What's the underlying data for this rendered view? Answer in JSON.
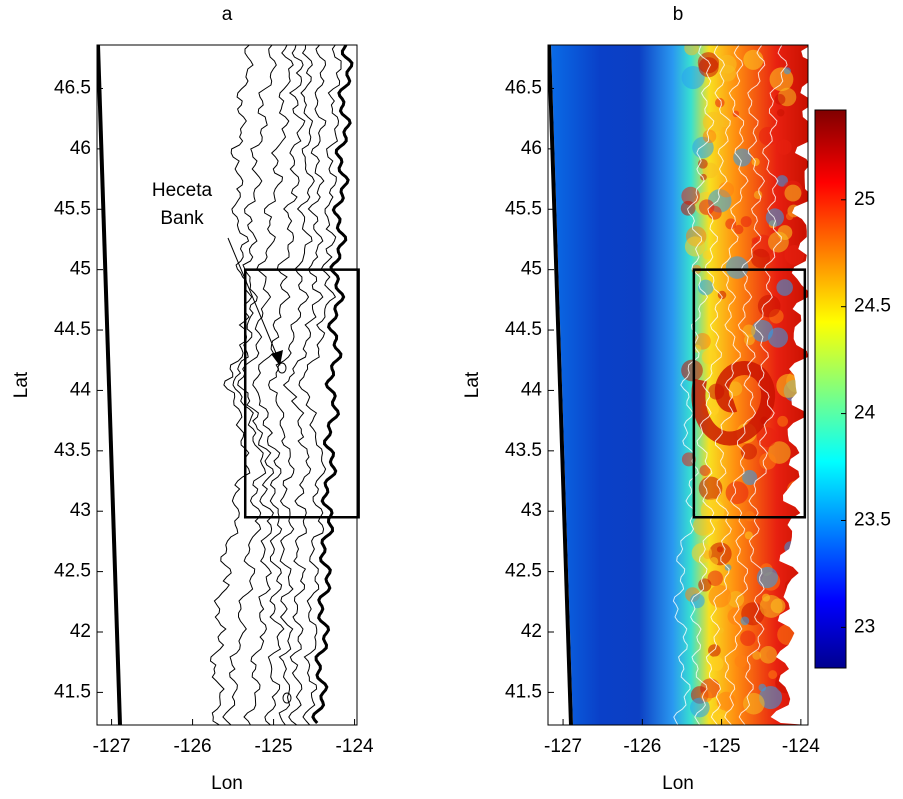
{
  "chart_data": [
    {
      "type": "map",
      "title": "a",
      "xlabel": "Lon",
      "ylabel": "Lat",
      "xlim": [
        -127.18,
        -123.97
      ],
      "ylim": [
        41.23,
        46.86
      ],
      "xticks": [
        -127,
        -126,
        -125,
        -124
      ],
      "yticks": [
        41.5,
        42,
        42.5,
        43,
        43.5,
        44,
        44.5,
        45,
        45.5,
        46,
        46.5
      ],
      "box": {
        "lon": [
          -125.35,
          -123.95
        ],
        "lat": [
          42.95,
          45.0
        ]
      },
      "annotation": [
        "Heceta",
        "Bank"
      ]
    },
    {
      "type": "field",
      "title": "b",
      "xlabel": "Lon",
      "ylabel": "Lat",
      "xlim": [
        -127.19,
        -123.91
      ],
      "ylim": [
        41.23,
        46.86
      ],
      "xticks": [
        -127,
        -126,
        -125,
        -124
      ],
      "yticks": [
        41.5,
        42,
        42.5,
        43,
        43.5,
        44,
        44.5,
        45,
        45.5,
        46,
        46.5
      ],
      "box": {
        "lon": [
          -125.35,
          -123.95
        ],
        "lat": [
          42.95,
          45.0
        ]
      },
      "colorbar": {
        "clim": [
          22.81,
          25.42
        ],
        "ticks": [
          23,
          23.5,
          24,
          24.5,
          25
        ]
      }
    }
  ]
}
